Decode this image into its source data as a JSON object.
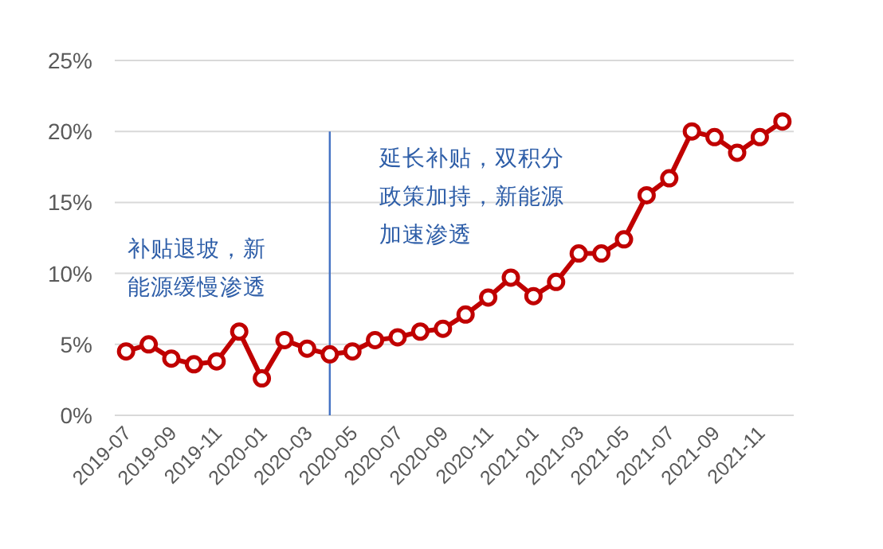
{
  "chart_data": {
    "type": "line",
    "x": [
      "2019-07",
      "2019-08",
      "2019-09",
      "2019-10",
      "2019-11",
      "2019-12",
      "2020-01",
      "2020-02",
      "2020-03",
      "2020-04",
      "2020-05",
      "2020-06",
      "2020-07",
      "2020-08",
      "2020-09",
      "2020-10",
      "2020-11",
      "2020-12",
      "2021-01",
      "2021-02",
      "2021-03",
      "2021-04",
      "2021-05",
      "2021-06",
      "2021-07",
      "2021-08",
      "2021-09",
      "2021-10",
      "2021-11",
      "2021-12"
    ],
    "series": [
      {
        "color": "#c00000",
        "values": [
          4.5,
          5.0,
          4.0,
          3.6,
          3.8,
          5.9,
          2.6,
          5.3,
          4.7,
          4.3,
          4.5,
          5.3,
          5.5,
          5.9,
          6.1,
          7.1,
          8.3,
          9.7,
          8.4,
          9.4,
          11.4,
          11.4,
          12.4,
          15.5,
          16.7,
          20.0,
          19.6,
          18.5,
          19.6,
          20.7
        ]
      }
    ],
    "xlim": [
      "2019-06-16",
      "2021-12-16"
    ],
    "xticks": [
      "2019-07",
      "2019-09",
      "2019-11",
      "2020-01",
      "2020-03",
      "2020-05",
      "2020-07",
      "2020-09",
      "2020-11",
      "2021-01",
      "2021-03",
      "2021-05",
      "2021-07",
      "2021-09",
      "2021-11"
    ],
    "ylim": [
      0,
      25
    ],
    "yticks": [
      {
        "value": 0,
        "label": "0%"
      },
      {
        "value": 5,
        "label": "5%"
      },
      {
        "value": 10,
        "label": "10%"
      },
      {
        "value": 15,
        "label": "15%"
      },
      {
        "value": 20,
        "label": "20%"
      },
      {
        "value": 25,
        "label": "25%"
      }
    ],
    "ref_lines": [
      {
        "axis": "x",
        "value": "2020-04",
        "color": "#4472c4"
      }
    ],
    "annotations": [
      "补贴退坡，新能源缓慢渗透",
      "延长补贴，双积分政策加持，新能源加速渗透"
    ],
    "grid": "y",
    "marker": "circle",
    "line_style": "solid"
  }
}
